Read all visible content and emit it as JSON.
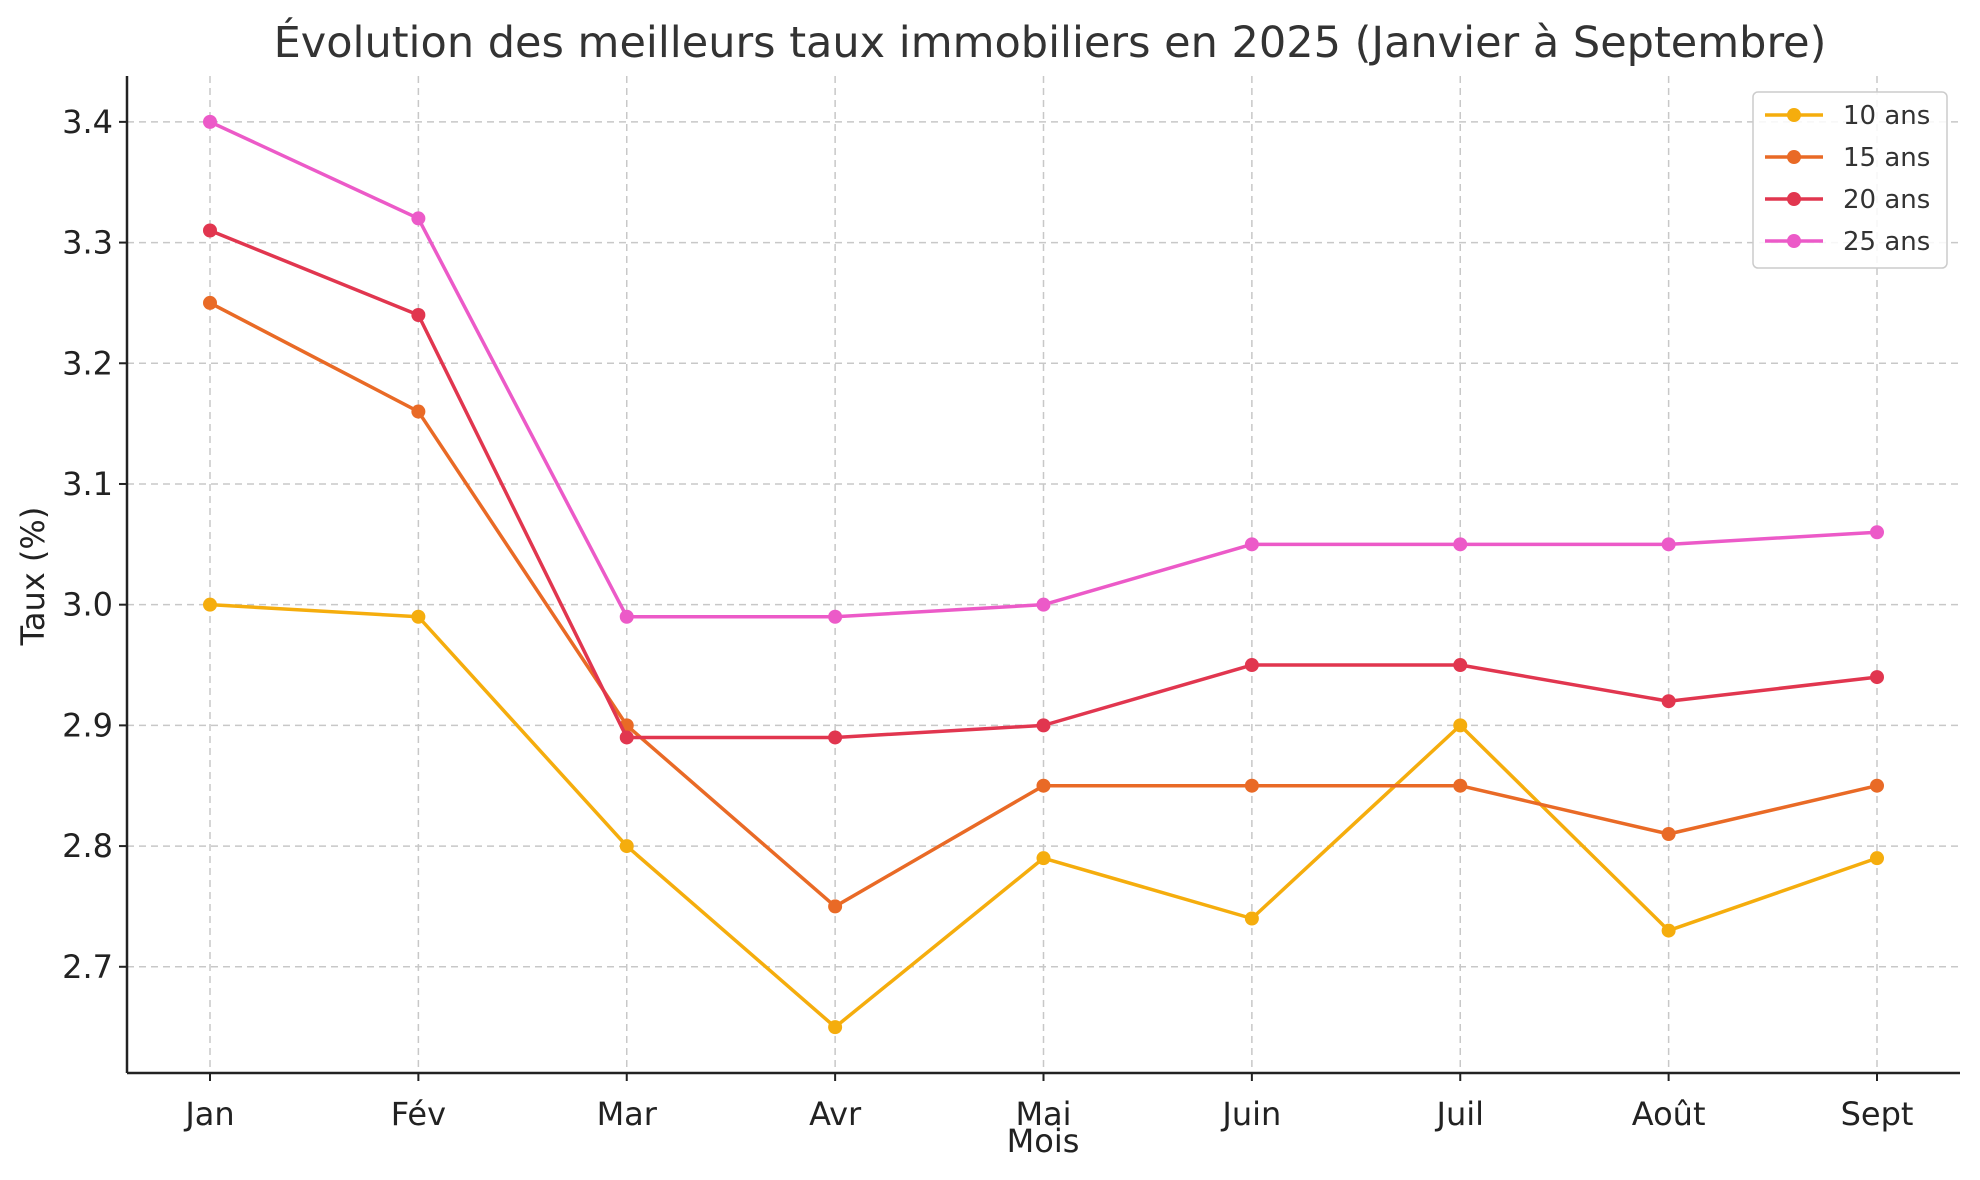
{
  "chart_data": {
    "type": "line",
    "title": "Évolution des meilleurs taux immobiliers en 2025 (Janvier à Septembre)",
    "xlabel": "Mois",
    "ylabel": "Taux (%)",
    "categories": [
      "Jan",
      "Fév",
      "Mar",
      "Avr",
      "Mai",
      "Juin",
      "Juil",
      "Août",
      "Sept"
    ],
    "ylim": [
      2.612,
      3.438
    ],
    "yticks": [
      2.7,
      2.8,
      2.9,
      3.0,
      3.1,
      3.2,
      3.3,
      3.4
    ],
    "ytick_labels": [
      "2.7",
      "2.8",
      "2.9",
      "3.0",
      "3.1",
      "3.2",
      "3.3",
      "3.4"
    ],
    "grid": true,
    "legend_position": "top-right",
    "series": [
      {
        "name": "10 ans",
        "color": "#F5AD0D",
        "values": [
          3.0,
          2.99,
          2.8,
          2.65,
          2.79,
          2.74,
          2.9,
          2.73,
          2.79
        ]
      },
      {
        "name": "15 ans",
        "color": "#E96A26",
        "values": [
          3.25,
          3.16,
          2.9,
          2.75,
          2.85,
          2.85,
          2.85,
          2.81,
          2.85
        ]
      },
      {
        "name": "20 ans",
        "color": "#E1364F",
        "values": [
          3.31,
          3.24,
          2.89,
          2.89,
          2.9,
          2.95,
          2.95,
          2.92,
          2.94
        ]
      },
      {
        "name": "25 ans",
        "color": "#EC5AC8",
        "values": [
          3.4,
          3.32,
          2.99,
          2.99,
          3.0,
          3.05,
          3.05,
          3.05,
          3.06
        ]
      }
    ]
  }
}
